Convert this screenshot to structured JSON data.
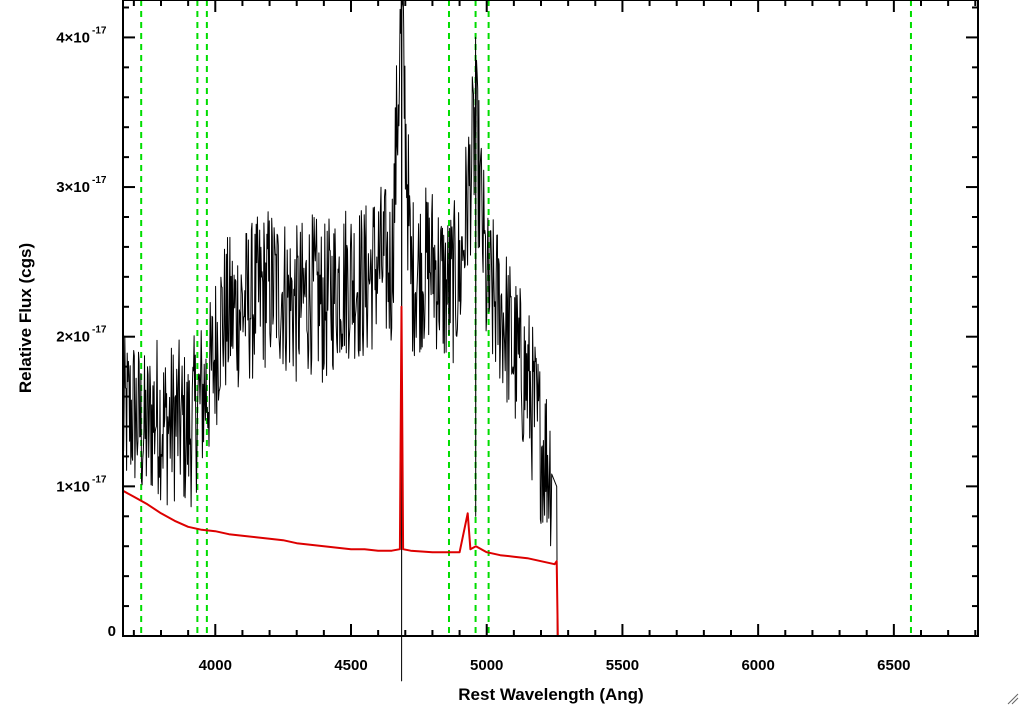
{
  "chart_data": {
    "type": "line",
    "title": "",
    "xlabel": "Rest Wavelength (Ang)",
    "ylabel": "Relative Flux (cgs)",
    "xlim": [
      3660,
      6810
    ],
    "ylim": [
      0,
      4.25e-17
    ],
    "x_ticks": [
      4000,
      4500,
      5000,
      5500,
      6000,
      6500
    ],
    "x_tick_labels": [
      "4000",
      "4500",
      "5000",
      "5500",
      "6000",
      "6500"
    ],
    "y_ticks": [
      0,
      1e-17,
      2e-17,
      3e-17,
      4e-17
    ],
    "y_tick_labels": [
      {
        "mantissa": "0",
        "exponent": ""
      },
      {
        "mantissa": "1×10",
        "exponent": "-17"
      },
      {
        "mantissa": "2×10",
        "exponent": "-17"
      },
      {
        "mantissa": "3×10",
        "exponent": "-17"
      },
      {
        "mantissa": "4×10",
        "exponent": "-17"
      }
    ],
    "vlines": {
      "color": "#00dd00",
      "style": "dashed",
      "x": [
        3727,
        3934,
        3969,
        4861,
        4959,
        5007,
        6563
      ]
    },
    "series": [
      {
        "color": "#000000",
        "description_free": true,
        "x": [
          3660,
          3700,
          3740,
          3780,
          3820,
          3860,
          3900,
          3940,
          3980,
          4020,
          4060,
          4100,
          4150,
          4200,
          4250,
          4300,
          4350,
          4400,
          4450,
          4500,
          4550,
          4600,
          4650,
          4686,
          4720,
          4760,
          4800,
          4850,
          4900,
          4959,
          5000,
          5050,
          5100,
          5150,
          5200,
          5240,
          5260
        ],
        "y": [
          1.45e-17,
          1.5e-17,
          1.35e-17,
          1.5e-17,
          1.4e-17,
          1.45e-17,
          1.35e-17,
          1.55e-17,
          1.7e-17,
          2.1e-17,
          2.15e-17,
          2.2e-17,
          2.25e-17,
          2.35e-17,
          2.3e-17,
          2.2e-17,
          2.3e-17,
          2.2e-17,
          2.35e-17,
          2.4e-17,
          2.35e-17,
          2.5e-17,
          2.45e-17,
          4.2e-17,
          2.4e-17,
          2.45e-17,
          2.5e-17,
          2.3e-17,
          2.4e-17,
          3.4e-17,
          2.3e-17,
          2.2e-17,
          1.9e-17,
          1.7e-17,
          1.3e-17,
          1.1e-17,
          0.0
        ]
      },
      {
        "color": "#dd0000",
        "x": [
          3660,
          3700,
          3750,
          3800,
          3850,
          3900,
          3950,
          4000,
          4050,
          4100,
          4150,
          4200,
          4250,
          4300,
          4350,
          4400,
          4450,
          4500,
          4550,
          4600,
          4650,
          4680,
          4686,
          4692,
          4720,
          4800,
          4900,
          4930,
          4940,
          4960,
          5000,
          5050,
          5100,
          5150,
          5200,
          5250,
          5258,
          5262,
          5400,
          5800,
          6200,
          6600,
          6810
        ],
        "y": [
          9.7e-18,
          9.3e-18,
          8.8e-18,
          8.2e-18,
          7.7e-18,
          7.3e-18,
          7.1e-18,
          7e-18,
          6.8e-18,
          6.7e-18,
          6.6e-18,
          6.5e-18,
          6.4e-18,
          6.2e-18,
          6.1e-18,
          6e-18,
          5.9e-18,
          5.8e-18,
          5.8e-18,
          5.7e-18,
          5.7e-18,
          5.8e-18,
          2.2e-17,
          5.8e-18,
          5.7e-18,
          5.6e-18,
          5.6e-18,
          8.2e-18,
          5.8e-18,
          6e-18,
          5.6e-18,
          5.4e-18,
          5.3e-18,
          5.2e-18,
          5e-18,
          4.8e-18,
          5e-18,
          0.0,
          0.0,
          0.0,
          0.0,
          0.0,
          0.0
        ]
      }
    ]
  }
}
